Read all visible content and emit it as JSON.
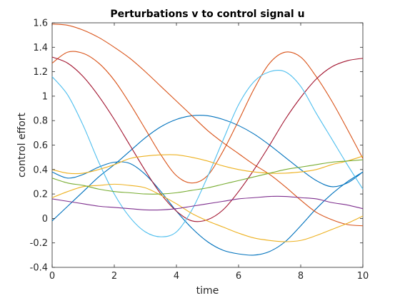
{
  "chart_data": {
    "type": "line",
    "title": "Perturbations v to control signal u",
    "xlabel": "time",
    "ylabel": "control effort",
    "xlim": [
      0,
      10
    ],
    "ylim": [
      -0.4,
      1.6
    ],
    "x_ticks": [
      0,
      2,
      4,
      6,
      8,
      10
    ],
    "y_ticks": [
      -0.4,
      -0.2,
      0,
      0.2,
      0.4,
      0.6,
      0.8,
      1,
      1.2,
      1.4,
      1.6
    ],
    "x_tick_labels": [
      "0",
      "2",
      "4",
      "6",
      "8",
      "10"
    ],
    "y_tick_labels": [
      "-0.4",
      "-0.2",
      "0",
      "0.2",
      "0.4",
      "0.6",
      "0.8",
      "1",
      "1.2",
      "1.4",
      "1.6"
    ],
    "grid": false,
    "legend": "none",
    "x": [
      0,
      0.5,
      1,
      1.5,
      2,
      2.5,
      3,
      3.5,
      4,
      4.5,
      5,
      5.5,
      6,
      6.5,
      7,
      7.5,
      8,
      8.5,
      9,
      9.5,
      10
    ],
    "series": [
      {
        "color": "#0072BD",
        "values": [
          -0.02,
          0.1,
          0.22,
          0.34,
          0.44,
          0.55,
          0.66,
          0.75,
          0.81,
          0.84,
          0.84,
          0.81,
          0.76,
          0.69,
          0.6,
          0.5,
          0.4,
          0.31,
          0.26,
          0.29,
          0.38
        ]
      },
      {
        "color": "#0072BD",
        "values": [
          0.38,
          0.33,
          0.36,
          0.42,
          0.46,
          0.45,
          0.36,
          0.22,
          0.06,
          -0.08,
          -0.19,
          -0.26,
          -0.29,
          -0.3,
          -0.27,
          -0.19,
          -0.06,
          0.08,
          0.2,
          0.3,
          0.38
        ]
      },
      {
        "color": "#D95319",
        "values": [
          1.59,
          1.58,
          1.54,
          1.48,
          1.4,
          1.31,
          1.2,
          1.08,
          0.96,
          0.84,
          0.72,
          0.62,
          0.53,
          0.44,
          0.36,
          0.26,
          0.15,
          0.05,
          -0.01,
          -0.05,
          -0.06
        ]
      },
      {
        "color": "#D95319",
        "values": [
          1.27,
          1.36,
          1.35,
          1.27,
          1.13,
          0.94,
          0.73,
          0.52,
          0.35,
          0.29,
          0.35,
          0.55,
          0.8,
          1.06,
          1.27,
          1.36,
          1.32,
          1.16,
          0.96,
          0.73,
          0.49
        ]
      },
      {
        "color": "#A2142F",
        "values": [
          1.32,
          1.27,
          1.16,
          1.0,
          0.81,
          0.6,
          0.39,
          0.2,
          0.06,
          -0.02,
          -0.01,
          0.07,
          0.22,
          0.4,
          0.6,
          0.81,
          0.99,
          1.14,
          1.24,
          1.29,
          1.31
        ]
      },
      {
        "color": "#4DBEEE",
        "values": [
          1.16,
          1.01,
          0.76,
          0.46,
          0.2,
          0.01,
          -0.11,
          -0.15,
          -0.11,
          0.07,
          0.34,
          0.64,
          0.93,
          1.12,
          1.2,
          1.2,
          1.08,
          0.86,
          0.65,
          0.44,
          0.24
        ]
      },
      {
        "color": "#EDB120",
        "values": [
          0.4,
          0.37,
          0.37,
          0.4,
          0.44,
          0.49,
          0.51,
          0.52,
          0.52,
          0.5,
          0.47,
          0.43,
          0.4,
          0.38,
          0.37,
          0.37,
          0.38,
          0.4,
          0.44,
          0.47,
          0.51
        ]
      },
      {
        "color": "#EDB120",
        "values": [
          0.17,
          0.22,
          0.26,
          0.27,
          0.28,
          0.27,
          0.25,
          0.19,
          0.12,
          0.04,
          -0.02,
          -0.07,
          -0.12,
          -0.16,
          -0.18,
          -0.19,
          -0.18,
          -0.14,
          -0.09,
          -0.04,
          0.02
        ]
      },
      {
        "color": "#77AC30",
        "values": [
          0.33,
          0.29,
          0.27,
          0.24,
          0.22,
          0.21,
          0.2,
          0.2,
          0.21,
          0.23,
          0.25,
          0.28,
          0.31,
          0.34,
          0.37,
          0.4,
          0.42,
          0.44,
          0.46,
          0.47,
          0.48
        ]
      },
      {
        "color": "#7E2F8E",
        "values": [
          0.16,
          0.14,
          0.12,
          0.1,
          0.09,
          0.08,
          0.07,
          0.07,
          0.08,
          0.1,
          0.12,
          0.14,
          0.16,
          0.17,
          0.18,
          0.18,
          0.17,
          0.16,
          0.13,
          0.11,
          0.08
        ]
      }
    ]
  }
}
